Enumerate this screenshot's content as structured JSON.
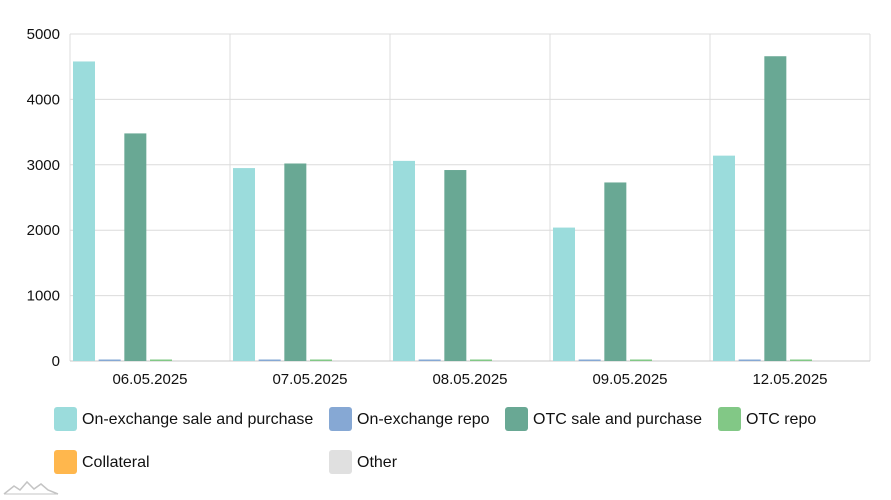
{
  "chart_data": {
    "type": "bar",
    "categories": [
      "06.05.2025",
      "07.05.2025",
      "08.05.2025",
      "09.05.2025",
      "12.05.2025"
    ],
    "ylim": [
      0,
      5000
    ],
    "yticks": [
      "0",
      "1000",
      "2000",
      "3000",
      "4000",
      "5000"
    ],
    "grid": true,
    "legend_position": "bottom",
    "series": [
      {
        "name": "On-exchange sale and purchase",
        "color": "#9bdcdc",
        "values": [
          4580,
          2950,
          3060,
          2040,
          3140
        ]
      },
      {
        "name": "On-exchange repo",
        "color": "#86a8d4",
        "values": [
          15,
          10,
          10,
          5,
          5
        ]
      },
      {
        "name": "OTC sale and purchase",
        "color": "#69a894",
        "values": [
          3480,
          3020,
          2920,
          2730,
          4660
        ]
      },
      {
        "name": "OTC repo",
        "color": "#82c886",
        "values": [
          3,
          3,
          3,
          3,
          3
        ]
      },
      {
        "name": "Collateral",
        "color": "#ffb74d",
        "values": [
          0,
          0,
          0,
          0,
          0
        ]
      },
      {
        "name": "Other",
        "color": "#e0e0e0",
        "values": [
          0,
          0,
          0,
          0,
          0
        ]
      }
    ]
  }
}
